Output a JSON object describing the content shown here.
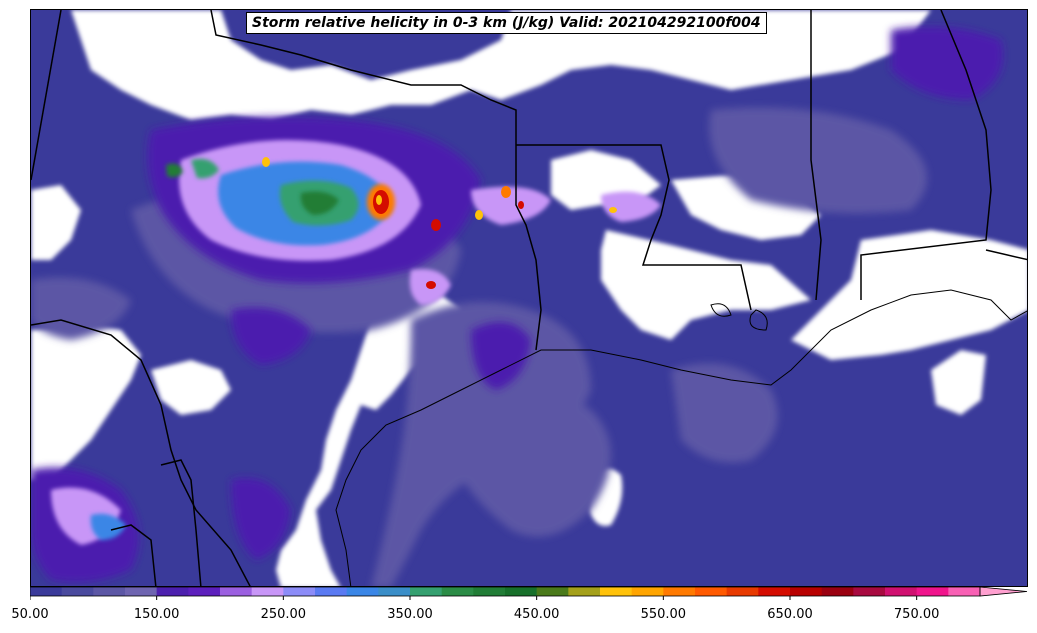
{
  "title": "Storm relative helicity in 0-3 km (J/kg) Valid: 202104292100f004",
  "colorbar": {
    "min": 50,
    "max": 800,
    "step": 25,
    "extend": "max",
    "tick_labels": [
      "50.00",
      "150.00",
      "250.00",
      "350.00",
      "450.00",
      "550.00",
      "650.00",
      "750.00"
    ],
    "tick_values": [
      50,
      150,
      250,
      350,
      450,
      550,
      650,
      750
    ],
    "colors": [
      "#3a3a9a",
      "#4a4a9e",
      "#5c57a5",
      "#6e64b0",
      "#4c1fae",
      "#5d1fbd",
      "#9b5fe0",
      "#c896f7",
      "#8c8cf8",
      "#5a7af2",
      "#3a86e6",
      "#3a8ec8",
      "#35a070",
      "#2b8c46",
      "#217d36",
      "#17702a",
      "#4a7a1a",
      "#a4a01a",
      "#ffc20a",
      "#ffa500",
      "#ff7a00",
      "#ff5a00",
      "#e83a00",
      "#d40c00",
      "#b80000",
      "#9a0010",
      "#a80a40",
      "#d01070",
      "#f0148c",
      "#f860b4"
    ],
    "extend_color": "#ffa0d0"
  },
  "map": {
    "region": "Southern Plains and Gulf Coast, United States",
    "field": "0-3 km storm relative helicity",
    "features": [
      "state boundaries",
      "coastline",
      "Gulf of Mexico"
    ]
  }
}
